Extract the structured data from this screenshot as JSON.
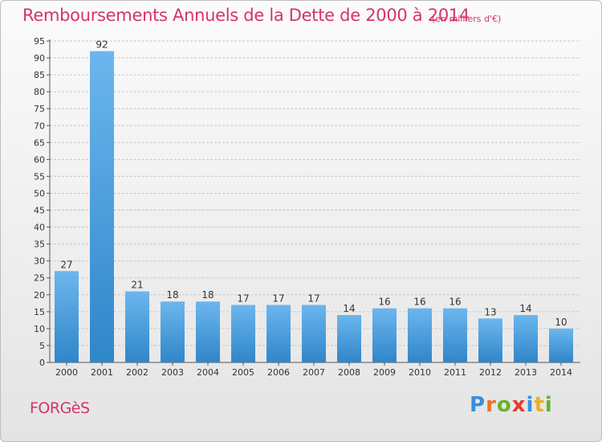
{
  "title": "Remboursements Annuels de la Dette de 2000 à 2014",
  "subtitle": "(en milliers d'€)",
  "commune": "FORGèS",
  "logo": {
    "text": "Proxiti",
    "colors": [
      "#3a8fd8",
      "#e8732a",
      "#66b32e",
      "#e63b2e",
      "#3a8fd8",
      "#e8b02a",
      "#66b32e"
    ]
  },
  "colors": {
    "title": "#d6336c",
    "bar_top": "#6cb6ee",
    "bar_bottom": "#2f86c9",
    "grid": "#c8c8c8"
  },
  "chart_data": {
    "type": "bar",
    "categories": [
      "2000",
      "2001",
      "2002",
      "2003",
      "2004",
      "2005",
      "2006",
      "2007",
      "2008",
      "2009",
      "2010",
      "2011",
      "2012",
      "2013",
      "2014"
    ],
    "values": [
      27,
      92,
      21,
      18,
      18,
      17,
      17,
      17,
      14,
      16,
      16,
      16,
      13,
      14,
      10
    ],
    "ylim": [
      0,
      95
    ],
    "yticks": [
      0,
      5,
      10,
      15,
      20,
      25,
      30,
      35,
      40,
      45,
      50,
      55,
      60,
      65,
      70,
      75,
      80,
      85,
      90,
      95
    ],
    "grid": true,
    "data_labels": true
  }
}
